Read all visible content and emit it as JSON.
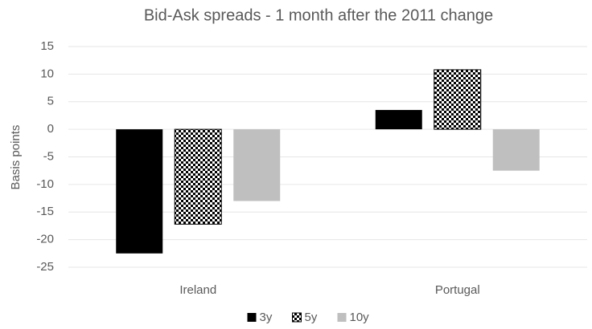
{
  "chart_data": {
    "type": "bar",
    "title": "Bid-Ask spreads - 1 month after the 2011 change",
    "y_label": "Basis points",
    "categories": [
      "Ireland",
      "Portugal"
    ],
    "series": [
      {
        "name": "3y",
        "color": "#000000",
        "values": [
          -22.5,
          3.5
        ]
      },
      {
        "name": "5y",
        "color": "#000000",
        "pattern": "checkerboard",
        "values": [
          -17.2,
          10.8
        ]
      },
      {
        "name": "10y",
        "color": "#bfbfbf",
        "values": [
          -13,
          -7.5
        ]
      }
    ],
    "ylim": [
      -25,
      15
    ],
    "yticks": [
      -25,
      -20,
      -15,
      -10,
      -5,
      0,
      5,
      10,
      15
    ],
    "grid": true,
    "legend": "bottom"
  }
}
